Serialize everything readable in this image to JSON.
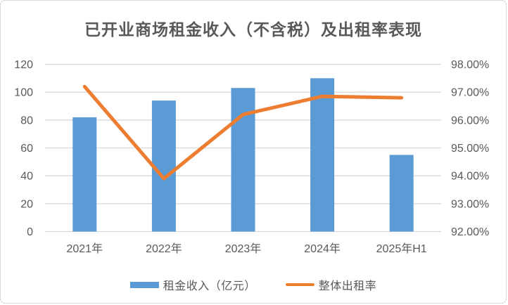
{
  "title": "已开业商场租金收入（不含税）及出租率表现",
  "colors": {
    "bar": "#5B9BD5",
    "line": "#ED7D31",
    "grid": "#D9D9D9",
    "axis": "#D9D9D9",
    "text": "#595959",
    "border": "#D9D9D9",
    "background": "#FFFFFF"
  },
  "chart_data": {
    "type": "combo",
    "title": "已开业商场租金收入（不含税）及出租率表现",
    "categories": [
      "2021年",
      "2022年",
      "2023年",
      "2024年",
      "2025年H1"
    ],
    "series": [
      {
        "name": "租金收入（亿元）",
        "type": "bar",
        "axis": "left",
        "color": "#5B9BD5",
        "values": [
          82,
          94,
          103,
          110,
          55
        ]
      },
      {
        "name": "整体出租率",
        "type": "line",
        "axis": "right",
        "color": "#ED7D31",
        "values": [
          97.2,
          93.9,
          96.2,
          96.85,
          96.8
        ]
      }
    ],
    "left_axis": {
      "min": 0,
      "max": 120,
      "step": 20,
      "ticks": [
        "120",
        "100",
        "80",
        "60",
        "40",
        "20",
        "0"
      ]
    },
    "right_axis": {
      "min": 92,
      "max": 98,
      "step": 1,
      "ticks": [
        "98.00%",
        "97.00%",
        "96.00%",
        "95.00%",
        "94.00%",
        "93.00%",
        "92.00%"
      ],
      "unit": "%"
    },
    "grid": true,
    "legend_position": "bottom"
  },
  "legend": {
    "items": [
      {
        "label": "租金收入（亿元）",
        "swatch": "bar"
      },
      {
        "label": "整体出租率",
        "swatch": "line"
      }
    ]
  }
}
